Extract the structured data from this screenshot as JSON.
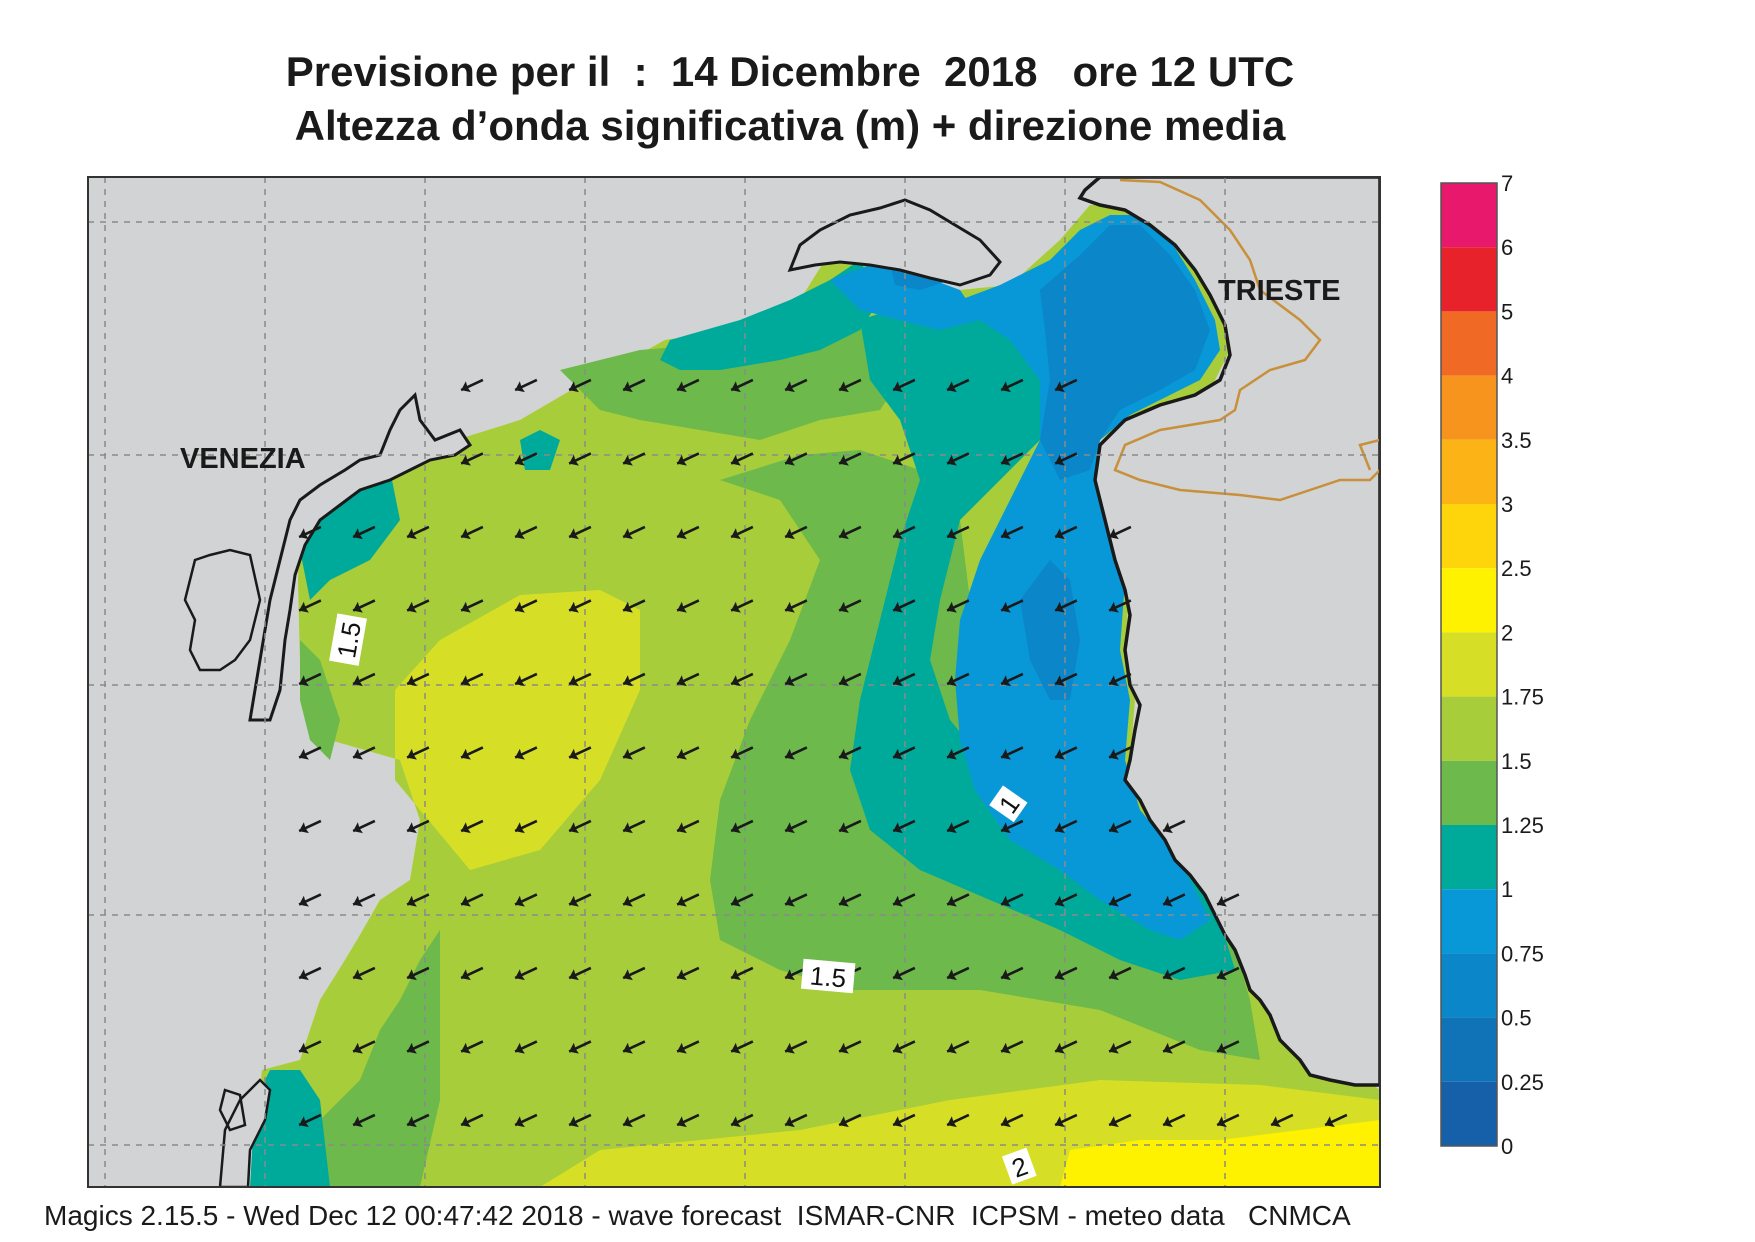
{
  "title_line1": "Previsione per il  :  14 Dicembre  2018   ore 12 UTC",
  "title_line2": "Altezza d’onda significativa (m) + direzione media",
  "cities": {
    "venezia": "VENEZIA",
    "trieste": "TRIESTE"
  },
  "contour_labels": {
    "c1": "1.5",
    "c2": "1",
    "c3": "1.5",
    "c4": "2"
  },
  "footer": "Magics 2.15.5 - Wed Dec 12 00:47:42 2018 - wave forecast  ISMAR-CNR  ICPSM - meteo data   CNMCA",
  "legend": {
    "labels": [
      "7",
      "6",
      "5",
      "4",
      "3.5",
      "3",
      "2.5",
      "2",
      "1.75",
      "1.5",
      "1.25",
      "1",
      "0.75",
      "0.5",
      "0.25",
      "0"
    ],
    "colors": [
      "#e8186c",
      "#e8222a",
      "#f06a26",
      "#f7941e",
      "#fbb316",
      "#fdd50a",
      "#fef200",
      "#d6df26",
      "#a8cd3a",
      "#6db94b",
      "#00aa9a",
      "#0898d8",
      "#0a86c9",
      "#1073b8",
      "#1560a8"
    ]
  },
  "colors": {
    "land": "#d1d3d4",
    "coast": "#1a1a1a",
    "border": "#c8903a",
    "arrow": "#1a1a1a"
  },
  "wave_direction": "southwest"
}
